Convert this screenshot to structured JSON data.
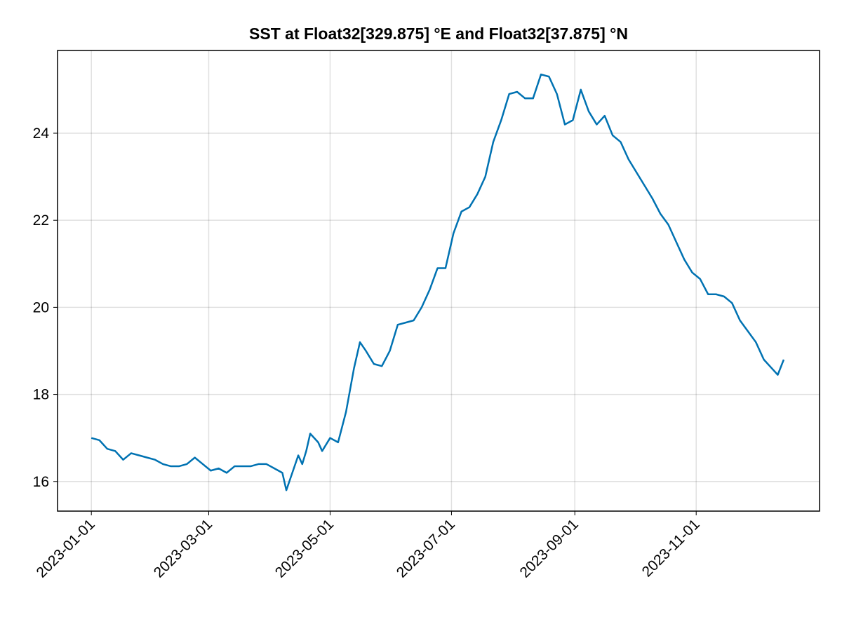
{
  "chart_data": {
    "type": "line",
    "title": "SST at Float32[329.875] °E and Float32[37.875] °N",
    "x": [
      "2023-01-01",
      "2023-01-05",
      "2023-01-09",
      "2023-01-13",
      "2023-01-17",
      "2023-01-21",
      "2023-01-25",
      "2023-01-29",
      "2023-02-02",
      "2023-02-06",
      "2023-02-10",
      "2023-02-14",
      "2023-02-18",
      "2023-02-22",
      "2023-02-26",
      "2023-03-02",
      "2023-03-06",
      "2023-03-10",
      "2023-03-14",
      "2023-03-18",
      "2023-03-22",
      "2023-03-26",
      "2023-03-30",
      "2023-04-03",
      "2023-04-07",
      "2023-04-09",
      "2023-04-12",
      "2023-04-15",
      "2023-04-17",
      "2023-04-19",
      "2023-04-21",
      "2023-04-25",
      "2023-04-27",
      "2023-05-01",
      "2023-05-05",
      "2023-05-09",
      "2023-05-13",
      "2023-05-16",
      "2023-05-19",
      "2023-05-23",
      "2023-05-27",
      "2023-05-31",
      "2023-06-04",
      "2023-06-08",
      "2023-06-12",
      "2023-06-16",
      "2023-06-20",
      "2023-06-24",
      "2023-06-28",
      "2023-07-02",
      "2023-07-06",
      "2023-07-10",
      "2023-07-14",
      "2023-07-18",
      "2023-07-22",
      "2023-07-26",
      "2023-07-30",
      "2023-08-03",
      "2023-08-07",
      "2023-08-11",
      "2023-08-15",
      "2023-08-19",
      "2023-08-23",
      "2023-08-27",
      "2023-08-31",
      "2023-09-04",
      "2023-09-08",
      "2023-09-12",
      "2023-09-16",
      "2023-09-20",
      "2023-09-24",
      "2023-09-28",
      "2023-10-02",
      "2023-10-06",
      "2023-10-10",
      "2023-10-14",
      "2023-10-18",
      "2023-10-22",
      "2023-10-26",
      "2023-10-30",
      "2023-11-03",
      "2023-11-07",
      "2023-11-11",
      "2023-11-15",
      "2023-11-19",
      "2023-11-23",
      "2023-11-27",
      "2023-12-01",
      "2023-12-05",
      "2023-12-09",
      "2023-12-12",
      "2023-12-15"
    ],
    "series": [
      {
        "color": "#0072b2",
        "values": [
          17.0,
          16.95,
          16.75,
          16.7,
          16.5,
          16.65,
          16.6,
          16.55,
          16.5,
          16.4,
          16.35,
          16.35,
          16.4,
          16.55,
          16.4,
          16.25,
          16.3,
          16.2,
          16.35,
          16.35,
          16.35,
          16.4,
          16.4,
          16.3,
          16.2,
          15.8,
          16.2,
          16.6,
          16.4,
          16.7,
          17.1,
          16.9,
          16.7,
          17.0,
          16.9,
          17.6,
          18.6,
          19.2,
          19.0,
          18.7,
          18.65,
          19.0,
          19.6,
          19.65,
          19.7,
          20.0,
          20.4,
          20.9,
          20.9,
          21.7,
          22.2,
          22.3,
          22.6,
          23.0,
          23.8,
          24.3,
          24.9,
          24.95,
          24.8,
          24.8,
          25.35,
          25.3,
          24.9,
          24.2,
          24.3,
          25.0,
          24.5,
          24.2,
          24.4,
          23.95,
          23.8,
          23.4,
          23.1,
          22.8,
          22.5,
          22.15,
          21.9,
          21.5,
          21.1,
          20.8,
          20.65,
          20.3,
          20.3,
          20.25,
          20.1,
          19.7,
          19.45,
          19.2,
          18.8,
          18.6,
          18.45,
          18.8
        ]
      }
    ],
    "xlim": [
      "2022-12-15",
      "2024-01-02"
    ],
    "xticks": [
      "2023-01-01",
      "2023-03-01",
      "2023-05-01",
      "2023-07-01",
      "2023-09-01",
      "2023-11-01"
    ],
    "ylim": [
      15.32,
      25.9
    ],
    "yticks": [
      16,
      18,
      20,
      22,
      24
    ],
    "grid": true
  }
}
